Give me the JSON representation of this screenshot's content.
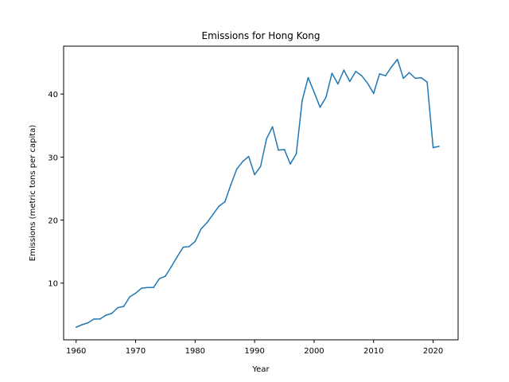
{
  "chart_data": {
    "type": "line",
    "title": "Emissions for Hong Kong",
    "xlabel": "Year",
    "ylabel": "Emissions (metric tons per capita)",
    "xlim": [
      1957.9,
      2024.2
    ],
    "ylim": [
      1.0,
      47.6
    ],
    "xticks": [
      1960,
      1970,
      1980,
      1990,
      2000,
      2010,
      2020
    ],
    "yticks": [
      10,
      20,
      30,
      40
    ],
    "grid": false,
    "legend": "none",
    "series": [
      {
        "color": "#1f77b4",
        "x": [
          1960,
          1961,
          1962,
          1963,
          1964,
          1965,
          1966,
          1967,
          1968,
          1969,
          1970,
          1971,
          1972,
          1973,
          1974,
          1975,
          1976,
          1977,
          1978,
          1979,
          1980,
          1981,
          1982,
          1983,
          1984,
          1985,
          1986,
          1987,
          1988,
          1989,
          1990,
          1991,
          1992,
          1993,
          1994,
          1995,
          1996,
          1997,
          1998,
          1999,
          2000,
          2001,
          2002,
          2003,
          2004,
          2005,
          2006,
          2007,
          2008,
          2009,
          2010,
          2011,
          2012,
          2013,
          2014,
          2015,
          2016,
          2017,
          2018,
          2019,
          2020,
          2021
        ],
        "values": [
          3.0,
          3.4,
          3.7,
          4.3,
          4.3,
          4.9,
          5.2,
          6.1,
          6.3,
          7.8,
          8.4,
          9.2,
          9.3,
          9.3,
          10.7,
          11.1,
          12.6,
          14.2,
          15.7,
          15.8,
          16.6,
          18.6,
          19.6,
          20.9,
          22.2,
          22.9,
          25.6,
          28.1,
          29.3,
          30.1,
          27.2,
          28.5,
          32.9,
          34.8,
          31.1,
          31.2,
          28.9,
          30.5,
          39.0,
          42.6,
          40.3,
          37.9,
          39.5,
          43.3,
          41.6,
          43.8,
          42.0,
          43.6,
          42.9,
          41.7,
          40.1,
          43.2,
          42.9,
          44.3,
          45.5,
          42.5,
          43.4,
          42.5,
          42.6,
          41.9,
          31.5,
          31.7
        ]
      }
    ]
  }
}
